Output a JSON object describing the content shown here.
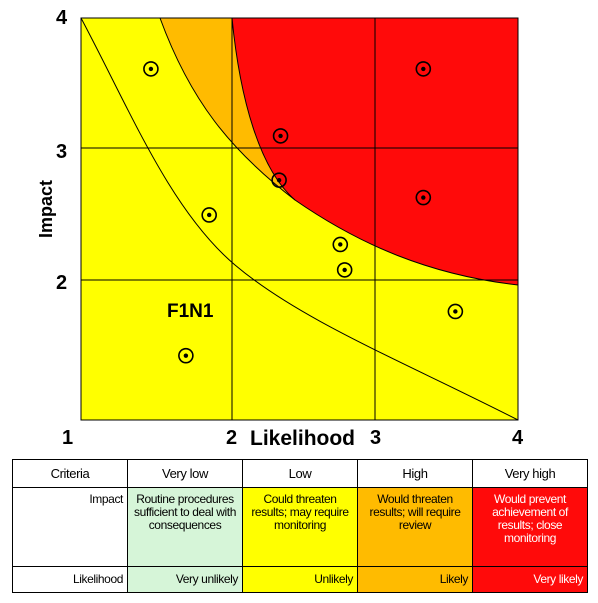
{
  "axes": {
    "x_label": "Likelihood",
    "y_label": "Impact",
    "x_ticks": [
      "1",
      "2",
      "3",
      "4"
    ],
    "y_ticks": [
      "4",
      "3",
      "2"
    ],
    "y_range": [
      1,
      4
    ],
    "x_range": [
      1,
      4
    ]
  },
  "colors": {
    "very_low": "#d6f5d8",
    "low": "#ffff00",
    "high": "#ffbb00",
    "very_high": "#ff0a0a",
    "grid": "#000000"
  },
  "annotation": "F1N1",
  "risks": [
    {
      "likelihood": 1.48,
      "impact": 3.62
    },
    {
      "likelihood": 1.88,
      "impact": 2.53
    },
    {
      "likelihood": 1.72,
      "impact": 1.48
    },
    {
      "likelihood": 2.37,
      "impact": 3.12
    },
    {
      "likelihood": 2.36,
      "impact": 2.79
    },
    {
      "likelihood": 2.78,
      "impact": 2.31
    },
    {
      "likelihood": 2.81,
      "impact": 2.12
    },
    {
      "likelihood": 3.35,
      "impact": 3.62
    },
    {
      "likelihood": 3.35,
      "impact": 2.66
    },
    {
      "likelihood": 3.57,
      "impact": 1.81
    }
  ],
  "legend": {
    "headers": [
      "Criteria",
      "Very low",
      "Low",
      "High",
      "Very high"
    ],
    "impact_label": "Impact",
    "impact": [
      "Routine procedures sufficient to deal with consequences",
      "Could threaten results; may require monitoring",
      "Would threaten results; will require review",
      "Would prevent achievement of results; close monitoring"
    ],
    "likelihood_label": "Likelihood",
    "likelihood": [
      "Very unlikely",
      "Unlikely",
      "Likely",
      "Very likely"
    ]
  }
}
